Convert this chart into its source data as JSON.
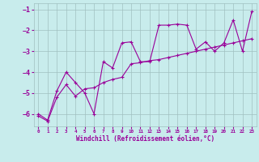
{
  "xlabel": "Windchill (Refroidissement éolien,°C)",
  "xlim": [
    -0.5,
    23.5
  ],
  "ylim": [
    -6.6,
    -0.7
  ],
  "yticks": [
    -6,
    -5,
    -4,
    -3,
    -2,
    -1
  ],
  "xticks": [
    0,
    1,
    2,
    3,
    4,
    5,
    6,
    7,
    8,
    9,
    10,
    11,
    12,
    13,
    14,
    15,
    16,
    17,
    18,
    19,
    20,
    21,
    22,
    23
  ],
  "bg_color": "#c8ecec",
  "line_color": "#990099",
  "grid_color": "#a0c0c0",
  "line1_x": [
    0,
    1,
    2,
    3,
    4,
    5,
    6,
    7,
    8,
    9,
    10,
    11,
    12,
    13,
    14,
    15,
    16,
    17,
    18,
    19,
    20,
    21,
    22,
    23
  ],
  "line1_y": [
    -6.0,
    -6.3,
    -4.9,
    -4.0,
    -4.5,
    -5.0,
    -6.0,
    -3.5,
    -3.8,
    -2.6,
    -2.55,
    -3.5,
    -3.5,
    -1.75,
    -1.75,
    -1.7,
    -1.75,
    -2.9,
    -2.55,
    -3.0,
    -2.6,
    -1.5,
    -3.0,
    -1.1
  ],
  "line2_x": [
    0,
    1,
    2,
    3,
    4,
    5,
    6,
    7,
    8,
    9,
    10,
    11,
    12,
    13,
    14,
    15,
    16,
    17,
    18,
    19,
    20,
    21,
    22,
    23
  ],
  "line2_y": [
    -6.1,
    -6.35,
    -5.2,
    -4.6,
    -5.15,
    -4.8,
    -4.75,
    -4.5,
    -4.35,
    -4.25,
    -3.6,
    -3.55,
    -3.45,
    -3.4,
    -3.3,
    -3.2,
    -3.1,
    -3.0,
    -2.9,
    -2.8,
    -2.7,
    -2.6,
    -2.5,
    -2.4
  ]
}
